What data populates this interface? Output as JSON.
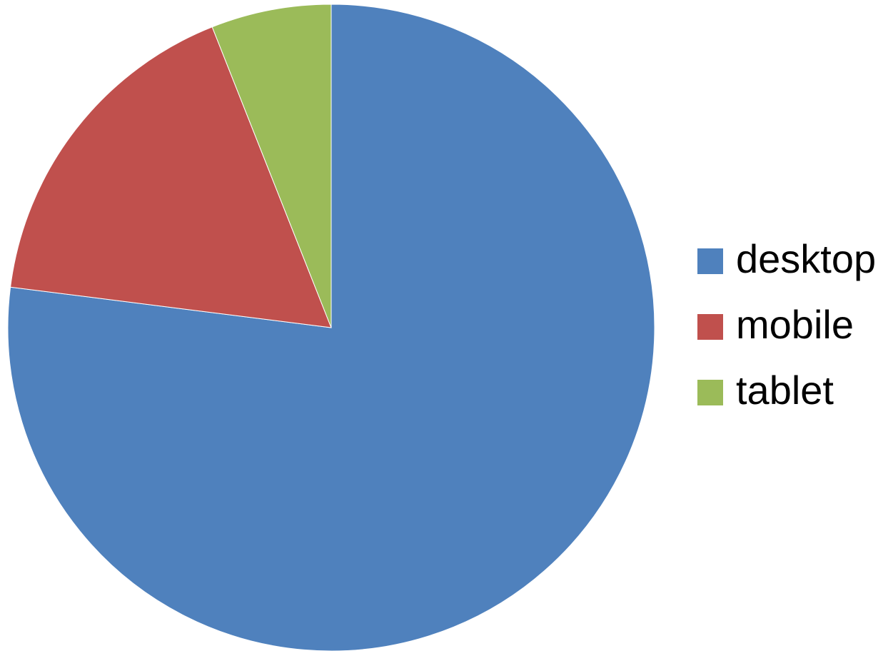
{
  "chart_data": {
    "type": "pie",
    "categories": [
      "desktop",
      "mobile",
      "tablet"
    ],
    "values": [
      77,
      17,
      6
    ],
    "colors": [
      "#4F81BD",
      "#C0504D",
      "#9BBB59"
    ],
    "title": "",
    "legend_position": "right",
    "start_angle": "top, clockwise"
  }
}
